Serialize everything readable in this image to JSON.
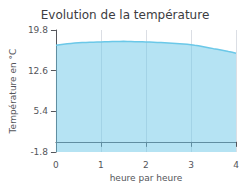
{
  "chart_data": {
    "type": "area",
    "title": "Evolution de la température",
    "xlabel": "heure par heure",
    "ylabel": "Température en °C",
    "color": "#6bc8e8",
    "x": [
      0.0,
      0.083,
      0.167,
      0.25,
      0.333,
      0.417,
      0.5,
      0.583,
      0.667,
      0.75,
      0.833,
      0.917,
      1.0,
      1.083,
      1.167,
      1.25,
      1.333,
      1.417,
      1.5,
      1.583,
      1.667,
      1.75,
      1.833,
      1.917,
      2.0,
      2.083,
      2.167,
      2.25,
      2.333,
      2.417,
      2.5,
      2.583,
      2.667,
      2.75,
      2.833,
      2.917,
      3.0,
      3.083,
      3.167,
      3.25,
      3.333,
      3.417,
      3.5,
      3.583,
      3.667,
      3.75,
      3.833,
      3.917,
      4.0
    ],
    "values": [
      17.1,
      17.2,
      17.28,
      17.35,
      17.42,
      17.48,
      17.53,
      17.57,
      17.6,
      17.63,
      17.65,
      17.67,
      17.69,
      17.71,
      17.73,
      17.75,
      17.77,
      17.78,
      17.79,
      17.78,
      17.76,
      17.74,
      17.72,
      17.7,
      17.68,
      17.66,
      17.63,
      17.6,
      17.57,
      17.54,
      17.5,
      17.46,
      17.42,
      17.37,
      17.32,
      17.26,
      17.2,
      17.1,
      17.0,
      16.88,
      16.76,
      16.63,
      16.5,
      16.38,
      16.25,
      16.12,
      15.98,
      15.85,
      15.7
    ],
    "xlim": [
      0,
      4
    ],
    "xticks": [
      0,
      1,
      2,
      3,
      4
    ],
    "ylim": [
      -1.8,
      19.8
    ],
    "yticks": [
      -1.8,
      5.4,
      12.6,
      19.8
    ],
    "grid": "x"
  }
}
